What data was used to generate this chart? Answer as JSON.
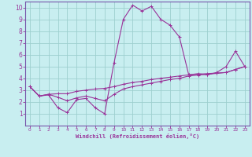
{
  "xlabel": "Windchill (Refroidissement éolien,°C)",
  "bg_color": "#c8eef0",
  "grid_color": "#9ecfcf",
  "line_color": "#993399",
  "spine_color": "#7755aa",
  "xlim": [
    -0.5,
    23.5
  ],
  "ylim": [
    0,
    10.5
  ],
  "xticks": [
    0,
    1,
    2,
    3,
    4,
    5,
    6,
    7,
    8,
    9,
    10,
    11,
    12,
    13,
    14,
    15,
    16,
    17,
    18,
    19,
    20,
    21,
    22,
    23
  ],
  "yticks": [
    1,
    2,
    3,
    4,
    5,
    6,
    7,
    8,
    9,
    10
  ],
  "curve1_x": [
    0,
    1,
    2,
    3,
    4,
    5,
    6,
    7,
    8,
    9,
    10,
    11,
    12,
    13,
    14,
    15,
    16,
    17,
    18,
    19,
    20,
    21,
    22,
    23
  ],
  "curve1_y": [
    3.3,
    2.5,
    2.6,
    1.5,
    1.1,
    2.2,
    2.3,
    1.5,
    1.0,
    5.3,
    9.0,
    10.2,
    9.7,
    10.1,
    9.0,
    8.5,
    7.5,
    4.3,
    4.4,
    4.3,
    4.5,
    5.0,
    6.3,
    5.0
  ],
  "curve2_x": [
    0,
    1,
    2,
    3,
    4,
    5,
    6,
    7,
    8,
    9,
    10,
    11,
    12,
    13,
    14,
    15,
    16,
    17,
    18,
    19,
    20,
    21,
    22,
    23
  ],
  "curve2_y": [
    3.3,
    2.5,
    2.65,
    2.7,
    2.7,
    2.9,
    3.0,
    3.1,
    3.15,
    3.3,
    3.5,
    3.65,
    3.75,
    3.9,
    4.0,
    4.1,
    4.2,
    4.3,
    4.35,
    4.4,
    4.45,
    4.5,
    4.75,
    5.0
  ],
  "curve3_x": [
    0,
    1,
    2,
    3,
    4,
    5,
    6,
    7,
    8,
    9,
    10,
    11,
    12,
    13,
    14,
    15,
    16,
    17,
    18,
    19,
    20,
    21,
    22,
    23
  ],
  "curve3_y": [
    3.3,
    2.5,
    2.65,
    2.4,
    2.1,
    2.35,
    2.5,
    2.3,
    2.1,
    2.65,
    3.1,
    3.3,
    3.45,
    3.6,
    3.75,
    3.9,
    4.0,
    4.2,
    4.28,
    4.35,
    4.42,
    4.5,
    4.75,
    5.0
  ]
}
